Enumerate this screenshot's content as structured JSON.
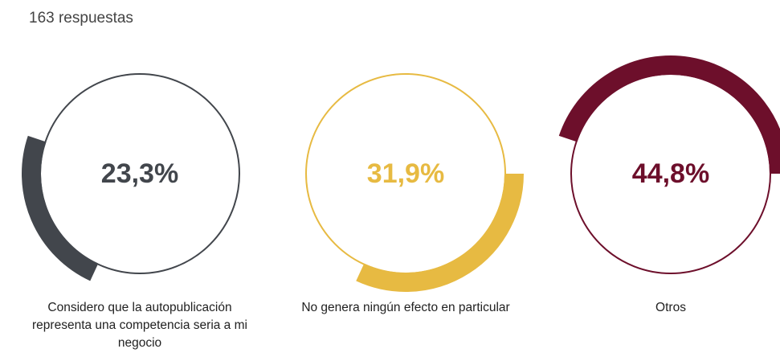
{
  "chart_data": {
    "type": "ring",
    "subtitle": "163 respuestas",
    "categories": [
      "Considero que la autopublicación representa una competencia seria a mi negocio",
      "No genera ningún efecto en particular",
      "Otros"
    ],
    "values": [
      23.3,
      31.9,
      44.8
    ],
    "value_labels": [
      "23,3%",
      "31,9%",
      "44,8%"
    ],
    "colors": [
      "#42464c",
      "#e7ba42",
      "#6d0f2b"
    ]
  }
}
